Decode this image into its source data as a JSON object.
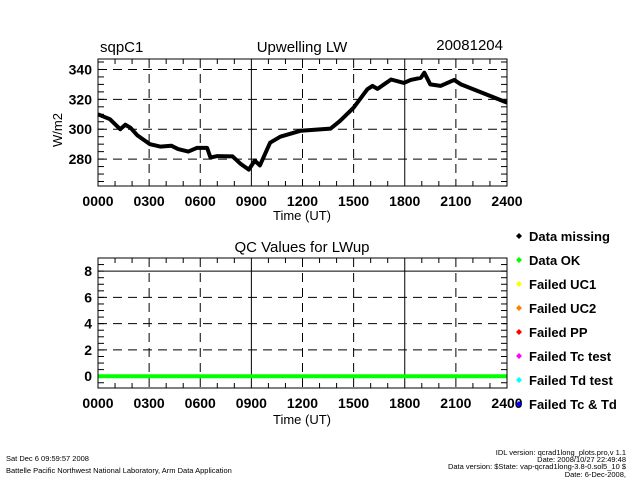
{
  "header": {
    "site": "sqpC1",
    "date": "20081204"
  },
  "chart_data": [
    {
      "type": "line",
      "title": "Upwelling LW",
      "xlabel": "Time (UT)",
      "ylabel": "W/m2",
      "xlim": [
        0,
        24
      ],
      "ylim": [
        262,
        347
      ],
      "xticks": [
        "0000",
        "0300",
        "0600",
        "0900",
        "1200",
        "1500",
        "1800",
        "2100",
        "2400"
      ],
      "yticks": [
        280,
        300,
        320,
        340
      ],
      "grid": true,
      "series": [
        {
          "name": "LWup",
          "color": "#000000",
          "x": [
            0,
            0.7,
            1.3,
            1.6,
            1.9,
            2.3,
            3.05,
            3.65,
            4.3,
            4.7,
            5.3,
            5.8,
            6.4,
            6.6,
            7,
            7.9,
            8.35,
            8.85,
            9.2,
            9.5,
            10.1,
            10.7,
            11.9,
            13.65,
            14.2,
            15,
            15.8,
            16.1,
            16.4,
            17.2,
            17.95,
            18.35,
            18.95,
            19.15,
            19.5,
            20.1,
            20.9,
            21.3,
            24
          ],
          "y": [
            310,
            306.7,
            300,
            303,
            301,
            296,
            290,
            288.4,
            289,
            286.7,
            285,
            287.5,
            287.5,
            281,
            282,
            281.8,
            277,
            273,
            279,
            275.8,
            291,
            295,
            299,
            300.4,
            305.6,
            314.4,
            326.7,
            329,
            327,
            333.3,
            331,
            333,
            334.4,
            337.8,
            330,
            329,
            333,
            330,
            317.8
          ]
        }
      ]
    },
    {
      "type": "line",
      "title": "QC Values for LWup",
      "xlabel": "Time (UT)",
      "xlim": [
        0,
        24
      ],
      "ylim": [
        -0.9,
        9
      ],
      "xticks": [
        "0000",
        "0300",
        "0600",
        "0900",
        "1200",
        "1500",
        "1800",
        "2100",
        "2400"
      ],
      "yticks": [
        0,
        2,
        4,
        6,
        8
      ],
      "grid": true,
      "series": [
        {
          "name": "QC",
          "color": "#00ff00",
          "x": [
            0,
            24
          ],
          "y": [
            0,
            0
          ]
        }
      ],
      "legend": {
        "placement": "right",
        "items": [
          {
            "label": "Data missing",
            "color": "#000000"
          },
          {
            "label": "Data OK",
            "color": "#00ff00"
          },
          {
            "label": "Failed UC1",
            "color": "#ffff00"
          },
          {
            "label": "Failed UC2",
            "color": "#ff8000"
          },
          {
            "label": "Failed PP",
            "color": "#ff0000"
          },
          {
            "label": "Failed Tc test",
            "color": "#ff00ff"
          },
          {
            "label": "Failed Td test",
            "color": "#00ffff"
          },
          {
            "label": "Failed Tc & Td",
            "color": "#0000ff"
          }
        ]
      }
    }
  ],
  "footer": {
    "timestamp": "Sat Dec  6 09:59:57 2008",
    "credit": "Battelle Pacific Northwest National Laboratory, Arm Data Application",
    "idl_version": "IDL version: qcrad1long_plots.pro,v 1.1",
    "idl_date": "Date: 2008/10/27 22:49:48",
    "data_version": "Data version: $State: vap-qcrad1long-3.8-0.sol5_10 $",
    "data_date": "Date: 6-Dec-2008,"
  }
}
